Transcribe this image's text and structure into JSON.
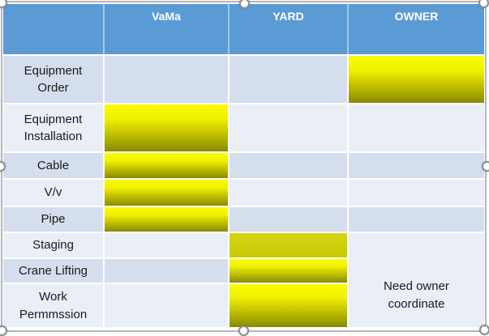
{
  "table": {
    "header": [
      "",
      "VaMa",
      "YARD",
      "OWNER"
    ],
    "rows": [
      {
        "label": "Equipment Order",
        "highlight": "OWNER"
      },
      {
        "label": "Equipment Installation",
        "highlight": "VaMa"
      },
      {
        "label": "Cable",
        "highlight": "VaMa"
      },
      {
        "label": "V/v",
        "highlight": "VaMa"
      },
      {
        "label": "Pipe",
        "highlight": "VaMa"
      },
      {
        "label": "Staging",
        "highlight": "YARD"
      },
      {
        "label": "Crane Lifting",
        "highlight": "YARD"
      },
      {
        "label": "Work Permmssion",
        "highlight": "YARD"
      }
    ],
    "merged_cell": {
      "column": "OWNER",
      "row_span": [
        "Staging",
        "Crane Lifting",
        "Work Permmssion"
      ],
      "text": "Need owner coordinate"
    }
  },
  "colors": {
    "header_bg": "#5b9bd5",
    "header_text": "#ffffff",
    "row_band_dark": "#d5deec",
    "row_band_light": "#eaeef6",
    "highlight_yellow_top": "#fbfb06",
    "highlight_yellow_bottom": "#8a8a05",
    "highlight_flat_yellow": "#ced00c",
    "cell_border": "#ffffff"
  }
}
